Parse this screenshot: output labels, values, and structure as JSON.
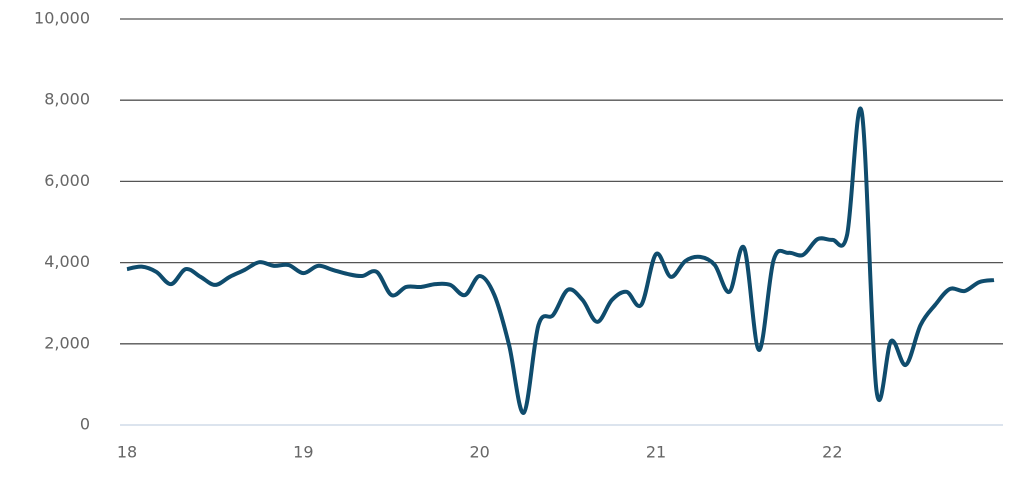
{
  "chart_data": {
    "type": "line",
    "categories": [
      "18",
      null,
      null,
      null,
      null,
      null,
      null,
      null,
      null,
      null,
      null,
      null,
      "19",
      null,
      null,
      null,
      null,
      null,
      null,
      null,
      null,
      null,
      null,
      null,
      "20",
      null,
      null,
      null,
      null,
      null,
      null,
      null,
      null,
      null,
      null,
      null,
      "21",
      null,
      null,
      null,
      null,
      null,
      null,
      null,
      null,
      null,
      null,
      null,
      "22",
      null,
      null,
      null,
      null,
      null,
      null,
      null,
      null,
      null,
      null,
      null
    ],
    "values": [
      3840,
      3900,
      3770,
      3470,
      3840,
      3650,
      3450,
      3650,
      3820,
      4010,
      3920,
      3940,
      3740,
      3920,
      3820,
      3720,
      3670,
      3770,
      3200,
      3400,
      3400,
      3470,
      3450,
      3200,
      3670,
      3200,
      1970,
      300,
      2460,
      2710,
      3330,
      3080,
      2540,
      3080,
      3280,
      2960,
      4210,
      3650,
      4040,
      4140,
      3940,
      3280,
      4360,
      1850,
      4060,
      4240,
      4190,
      4580,
      4560,
      4680,
      7710,
      860,
      2070,
      1480,
      2460,
      2960,
      3350,
      3300,
      3520,
      3570
    ],
    "color": "#0f4c6d",
    "ylim": [
      0,
      10000
    ],
    "yticks": [
      0,
      {
        "value": 2000,
        "label": "2,000"
      },
      {
        "value": 4000,
        "label": "4,000"
      },
      {
        "value": 6000,
        "label": "6,000"
      },
      {
        "value": 8000,
        "label": "8,000"
      },
      {
        "value": 10000,
        "label": "10,000"
      }
    ],
    "grid": true
  }
}
